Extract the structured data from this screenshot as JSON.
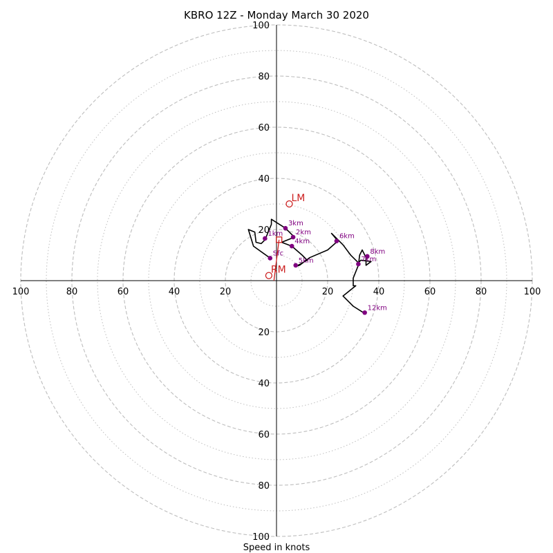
{
  "chart_data": {
    "type": "hodograph",
    "title": "KBRO 12Z - Monday March 30 2020",
    "xlabel": "Speed in knots",
    "xlim": [
      -100,
      100
    ],
    "ylim": [
      -100,
      100
    ],
    "x_tick_labels": [
      "100",
      "80",
      "60",
      "40",
      "20",
      "20",
      "40",
      "60",
      "80",
      "100"
    ],
    "y_tick_labels": [
      "100",
      "80",
      "60",
      "40",
      "20",
      "20",
      "40",
      "60",
      "80",
      "100"
    ],
    "ring_speeds_dashed": [
      20,
      40,
      60,
      80,
      100
    ],
    "ring_speeds_dotted": [
      10,
      30,
      50,
      70,
      90
    ],
    "grid": true,
    "colors": {
      "trace": "#000000",
      "height_points": "#800080",
      "motion": "#cc1f1f",
      "grid": "#bdbdbd"
    },
    "series": [
      {
        "points": [
          [
            -2.5,
            8.8
          ],
          [
            -9,
            13.5
          ],
          [
            -11,
            20
          ],
          [
            -8.5,
            19
          ],
          [
            -8,
            15
          ],
          [
            -6,
            14.5
          ],
          [
            -4.5,
            16
          ],
          [
            -2,
            22
          ],
          [
            -2,
            24
          ],
          [
            3.5,
            20.5
          ],
          [
            7,
            17
          ],
          [
            2,
            15
          ],
          [
            6,
            13.5
          ],
          [
            10,
            10
          ],
          [
            12,
            8
          ],
          [
            7.5,
            5.5
          ],
          [
            9,
            6
          ],
          [
            13,
            9
          ],
          [
            20,
            12
          ],
          [
            24,
            15.5
          ],
          [
            21.5,
            18.5
          ],
          [
            26,
            14
          ],
          [
            29,
            10
          ],
          [
            32,
            7
          ],
          [
            33,
            8
          ],
          [
            37,
            7.5
          ],
          [
            35,
            6
          ],
          [
            35,
            9
          ],
          [
            33.5,
            12
          ],
          [
            32.5,
            10
          ],
          [
            32,
            6
          ],
          [
            30,
            1
          ],
          [
            30,
            -2
          ],
          [
            31,
            -2
          ],
          [
            26,
            -6
          ],
          [
            30,
            -10
          ],
          [
            34,
            -12.5
          ]
        ]
      }
    ],
    "height_markers": [
      {
        "label": "Sfc",
        "u": -2.5,
        "v": 8.8
      },
      {
        "label": "1km",
        "u": -4.5,
        "v": 16.5
      },
      {
        "label": "3km",
        "u": 3.5,
        "v": 20.5
      },
      {
        "label": "2km",
        "u": 6.5,
        "v": 17
      },
      {
        "label": "4km",
        "u": 6,
        "v": 13.5
      },
      {
        "label": "5km",
        "u": 7.5,
        "v": 6
      },
      {
        "label": "6km",
        "u": 23.5,
        "v": 15.5
      },
      {
        "label": "7km",
        "u": 32,
        "v": 6.5
      },
      {
        "label": "8km",
        "u": 35.5,
        "v": 9.5
      },
      {
        "label": "12km",
        "u": 34.5,
        "v": -12.5
      }
    ],
    "storm_motion": [
      {
        "label": "LM",
        "u": 5,
        "v": 30
      },
      {
        "label": "RM",
        "u": -3,
        "v": 2
      },
      {
        "label": "",
        "u": 1,
        "v": 16
      }
    ]
  }
}
